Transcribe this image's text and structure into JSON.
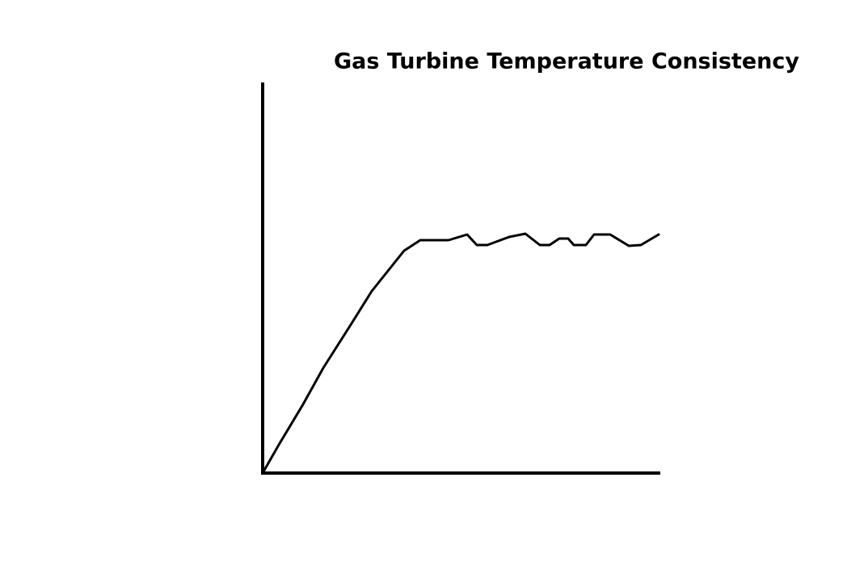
{
  "chart_data": {
    "type": "line",
    "title": "Gas Turbine Temperature Consistency",
    "x": [
      0,
      20,
      50,
      75,
      110,
      135,
      175,
      195,
      230,
      253,
      265,
      278,
      305,
      325,
      343,
      355,
      367,
      378,
      385,
      400,
      410,
      430,
      453,
      468,
      490
    ],
    "series": [
      {
        "color": "#000000",
        "values": [
          0,
          35,
          85,
          130,
          185,
          225,
          275,
          288,
          288,
          295,
          282,
          282,
          292,
          296,
          282,
          282,
          290,
          290,
          282,
          282,
          295,
          295,
          281,
          282,
          295
        ]
      }
    ],
    "xlim": [
      0,
      490
    ],
    "ylim": [
      0,
      483
    ]
  }
}
